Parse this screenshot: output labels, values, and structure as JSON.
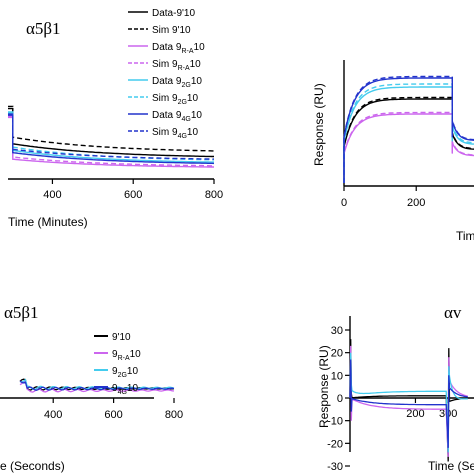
{
  "panels": {
    "tl": {
      "title": "α5β1"
    },
    "bl": {
      "title": "α5β1"
    },
    "br": {
      "title": "αv"
    }
  },
  "colors": {
    "data_9_10": "#000000",
    "data_9RA_10": "#cc66ee",
    "data_92G_10": "#44ccee",
    "data_94G_10": "#2233cc"
  },
  "chart_data": [
    {
      "id": "top-left",
      "type": "line",
      "title": "α5β1",
      "xlabel": "Time (Minutes)",
      "ylabel": "",
      "xticks": [
        "400",
        "600",
        "800"
      ],
      "xlim": [
        290,
        800
      ],
      "ylim": [
        0,
        100
      ],
      "legend": [
        {
          "name": "Data-9'10",
          "color": "#000000",
          "dash": false
        },
        {
          "name": "Sim 9'10",
          "color": "#000000",
          "dash": true
        },
        {
          "name": "Data 9R-A10",
          "color": "#cc66ee",
          "dash": false
        },
        {
          "name": "Sim 9R-A10",
          "color": "#cc66ee",
          "dash": true
        },
        {
          "name": "Data 92G10",
          "color": "#44ccee",
          "dash": false
        },
        {
          "name": "Sim 92G10",
          "color": "#44ccee",
          "dash": true
        },
        {
          "name": "Data 94G10",
          "color": "#2233cc",
          "dash": false
        },
        {
          "name": "Sim 94G10",
          "color": "#2233cc",
          "dash": true
        }
      ],
      "legend_placement": "top-right",
      "series": [
        {
          "name": "Data-9'10",
          "color": "#000000",
          "dash": false,
          "plateau": 64,
          "start": 32,
          "end": 19
        },
        {
          "name": "Sim 9'10",
          "color": "#000000",
          "dash": true,
          "plateau": 66,
          "start": 38,
          "end": 24
        },
        {
          "name": "Data 9R-A10",
          "color": "#cc66ee",
          "dash": false,
          "plateau": 56,
          "start": 18,
          "end": 10
        },
        {
          "name": "Sim 9R-A10",
          "color": "#cc66ee",
          "dash": true,
          "plateau": 57,
          "start": 20,
          "end": 11
        },
        {
          "name": "Data 92G10",
          "color": "#44ccee",
          "dash": false,
          "plateau": 60,
          "start": 26,
          "end": 14
        },
        {
          "name": "Sim 92G10",
          "color": "#44ccee",
          "dash": true,
          "plateau": 61,
          "start": 29,
          "end": 16
        },
        {
          "name": "Data 94G10",
          "color": "#2233cc",
          "dash": false,
          "plateau": 58,
          "start": 24,
          "end": 13
        },
        {
          "name": "Sim 94G10",
          "color": "#2233cc",
          "dash": true,
          "plateau": 59,
          "start": 27,
          "end": 17
        }
      ]
    },
    {
      "id": "top-right",
      "type": "line",
      "title": "",
      "xlabel": "Tim",
      "ylabel": "Response (RU)",
      "xticks": [
        "0",
        "200"
      ],
      "xlim": [
        0,
        360
      ],
      "ylim": [
        0,
        80
      ],
      "series": [
        {
          "name": "Data-9'10",
          "color": "#000000",
          "dash": false,
          "plateau": 58
        },
        {
          "name": "Sim 9'10",
          "color": "#000000",
          "dash": true,
          "plateau": 59
        },
        {
          "name": "Data 9R-A10",
          "color": "#cc66ee",
          "dash": false,
          "plateau": 48
        },
        {
          "name": "Sim 9R-A10",
          "color": "#cc66ee",
          "dash": true,
          "plateau": 49
        },
        {
          "name": "Data 92G10",
          "color": "#44ccee",
          "dash": false,
          "plateau": 66
        },
        {
          "name": "Sim 92G10",
          "color": "#44ccee",
          "dash": true,
          "plateau": 68
        },
        {
          "name": "Data 94G10",
          "color": "#2233cc",
          "dash": false,
          "plateau": 72
        },
        {
          "name": "Sim 94G10",
          "color": "#2233cc",
          "dash": true,
          "plateau": 73
        }
      ]
    },
    {
      "id": "bottom-left",
      "type": "line",
      "title": "α5β1",
      "xlabel": "e (Seconds)",
      "ylabel": "",
      "xticks": [
        "400",
        "600",
        "800"
      ],
      "xlim": [
        290,
        800
      ],
      "ylim": [
        -5,
        5
      ],
      "legend": [
        {
          "name": "9'10",
          "color": "#000000"
        },
        {
          "name": "9R-A10",
          "color": "#cc66ee"
        },
        {
          "name": "92G10",
          "color": "#44ccee"
        },
        {
          "name": "94G10",
          "color": "#2233cc"
        }
      ],
      "legend_placement": "top-right",
      "series": [
        {
          "name": "9'10",
          "color": "#000000",
          "level": 0.2
        },
        {
          "name": "9R-A10",
          "color": "#cc66ee",
          "level": -0.5
        },
        {
          "name": "92G10",
          "color": "#44ccee",
          "level": 0.4
        },
        {
          "name": "94G10",
          "color": "#2233cc",
          "level": 0.1
        }
      ]
    },
    {
      "id": "bottom-right",
      "type": "line",
      "title": "αv",
      "xlabel": "Time (Se",
      "ylabel": "Response (RU)",
      "xticks": [
        "200",
        "300"
      ],
      "yticks": [
        "30",
        "20",
        "10",
        "0",
        "-10",
        "-20",
        "-30"
      ],
      "xlim": [
        0,
        360
      ],
      "ylim": [
        -30,
        30
      ],
      "series": [
        {
          "name": "9'10",
          "color": "#000000",
          "level": 1
        },
        {
          "name": "9R-A10",
          "color": "#cc66ee",
          "level": -5
        },
        {
          "name": "92G10",
          "color": "#44ccee",
          "level": 3
        },
        {
          "name": "94G10",
          "color": "#2233cc",
          "level": -3
        }
      ]
    }
  ]
}
